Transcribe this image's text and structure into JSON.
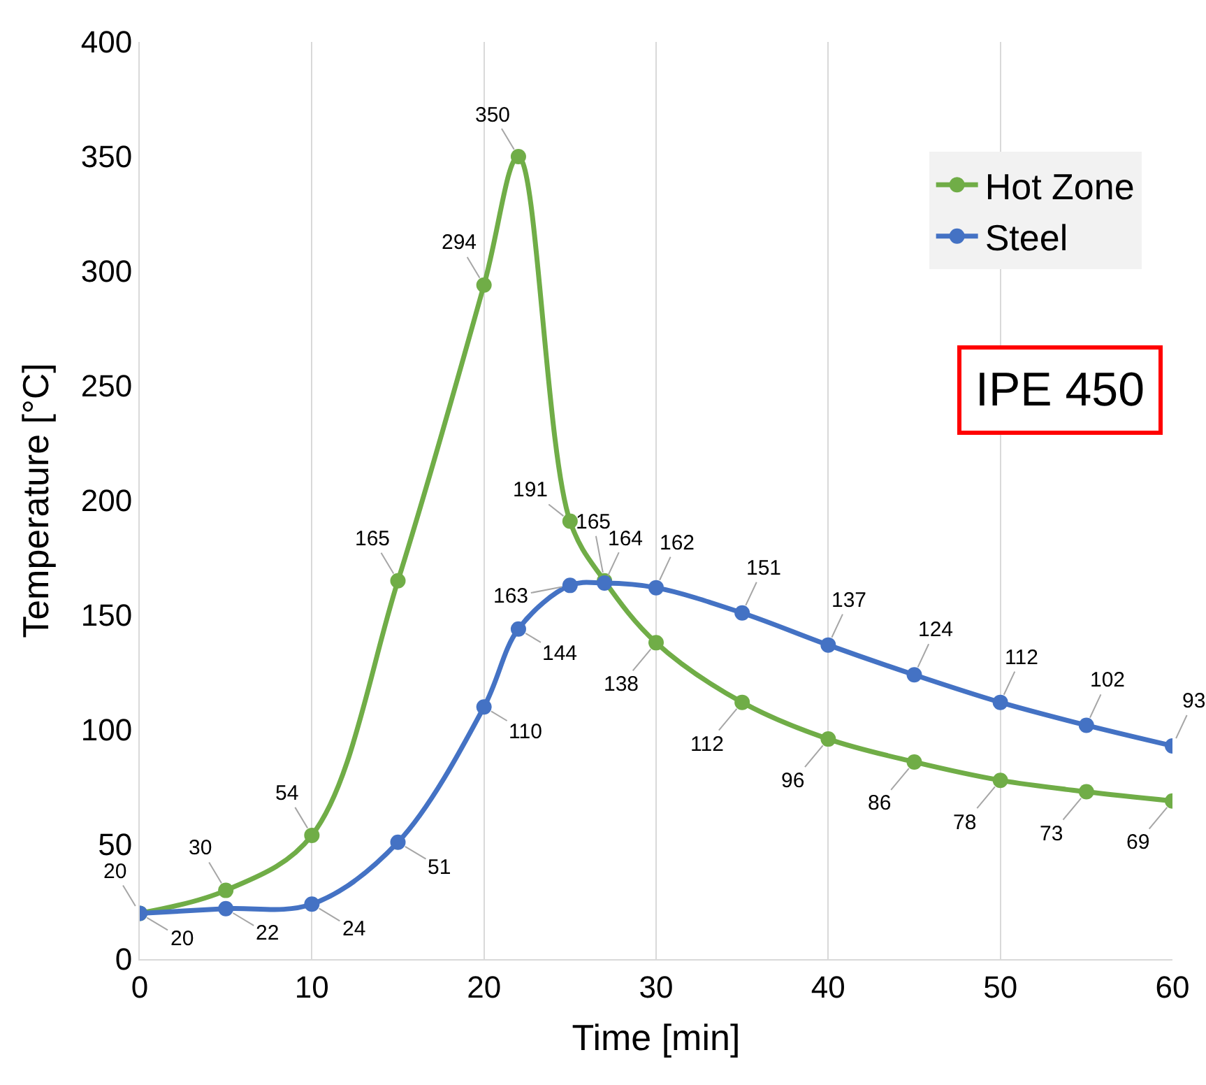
{
  "chart_data": {
    "type": "line",
    "xlabel": "Time [min]",
    "ylabel": "Temperature [°C]",
    "xlim": [
      0,
      60
    ],
    "xticks": [
      0,
      10,
      20,
      30,
      40,
      50,
      60
    ],
    "ylim": [
      0,
      400
    ],
    "yticks": [
      0,
      50,
      100,
      150,
      200,
      250,
      300,
      350,
      400
    ],
    "grid": "x",
    "legend": "top right",
    "marker": "circle",
    "line_style": "solid",
    "data_labels": true,
    "annotations": [
      "IPE 450"
    ],
    "series": [
      {
        "name": "Hot Zone",
        "color": "#70ad47",
        "x": [
          0,
          5,
          10,
          15,
          20,
          22,
          25,
          27,
          30,
          35,
          40,
          45,
          50,
          55,
          60
        ],
        "values": [
          20,
          30,
          54,
          165,
          294,
          350,
          191,
          165,
          138,
          112,
          96,
          86,
          78,
          73,
          69
        ]
      },
      {
        "name": "Steel",
        "color": "#4472c4",
        "x": [
          0,
          5,
          10,
          15,
          20,
          22,
          25,
          27,
          30,
          35,
          40,
          45,
          50,
          55,
          60
        ],
        "values": [
          20,
          22,
          24,
          51,
          110,
          144,
          163,
          164,
          162,
          151,
          137,
          124,
          112,
          102,
          93
        ]
      }
    ]
  }
}
